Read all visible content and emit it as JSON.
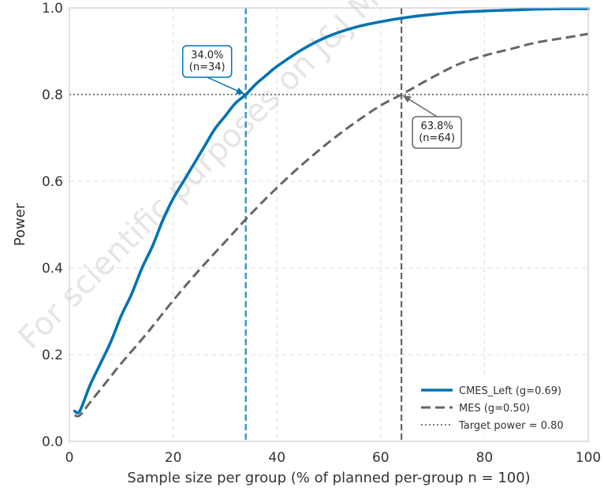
{
  "chart_data": {
    "type": "line",
    "xlabel": "Sample size per group (% of planned per-group n = 100)",
    "ylabel": "Power",
    "xlim": [
      0,
      100
    ],
    "ylim": [
      0.0,
      1.0
    ],
    "xticks": [
      0,
      20,
      40,
      60,
      80,
      100
    ],
    "yticks": [
      0.0,
      0.2,
      0.4,
      0.6,
      0.8,
      1.0
    ],
    "xtick_labels": [
      "0",
      "20",
      "40",
      "60",
      "80",
      "100"
    ],
    "ytick_labels": [
      "0.0",
      "0.2",
      "0.4",
      "0.6",
      "0.8",
      "1.0"
    ],
    "grid": true,
    "legend_position": "bottom-right",
    "series": [
      {
        "name": "CMES_Left (g=0.69)",
        "color": "#0072b2",
        "style": "solid",
        "x": [
          1,
          2,
          4,
          6,
          8,
          10,
          12,
          14,
          16,
          18,
          20,
          22,
          24,
          26,
          28,
          30,
          32,
          34,
          36,
          38,
          40,
          45,
          50,
          55,
          60,
          65,
          70,
          75,
          80,
          85,
          90,
          95,
          100
        ],
        "y": [
          0.07,
          0.07,
          0.13,
          0.18,
          0.23,
          0.29,
          0.34,
          0.4,
          0.45,
          0.51,
          0.56,
          0.6,
          0.64,
          0.68,
          0.72,
          0.75,
          0.78,
          0.8,
          0.825,
          0.845,
          0.865,
          0.905,
          0.935,
          0.955,
          0.968,
          0.978,
          0.985,
          0.99,
          0.993,
          0.995,
          0.997,
          0.998,
          0.998
        ]
      },
      {
        "name": "MES (g=0.50)",
        "color": "#666666",
        "style": "dashed",
        "x": [
          1,
          2,
          4,
          6,
          8,
          10,
          15,
          20,
          25,
          30,
          35,
          40,
          45,
          50,
          55,
          60,
          64,
          70,
          75,
          80,
          85,
          90,
          95,
          100
        ],
        "y": [
          0.06,
          0.06,
          0.09,
          0.12,
          0.15,
          0.18,
          0.25,
          0.325,
          0.395,
          0.46,
          0.525,
          0.585,
          0.64,
          0.69,
          0.735,
          0.775,
          0.8,
          0.84,
          0.87,
          0.89,
          0.905,
          0.92,
          0.93,
          0.94
        ]
      }
    ],
    "target_power": {
      "name": "Target power = 0.80",
      "value": 0.8,
      "color": "#333333",
      "style": "dotted"
    },
    "vertical_lines": [
      {
        "x": 34,
        "color": "#2b8cc4",
        "style": "dashed"
      },
      {
        "x": 64,
        "color": "#666666",
        "style": "dashed"
      }
    ],
    "annotations": [
      {
        "lines": [
          "34.0%",
          "(n=34)"
        ],
        "point": [
          34,
          0.8
        ],
        "border": "#0072b2",
        "position": "upper-left"
      },
      {
        "lines": [
          "63.8%",
          "(n=64)"
        ],
        "point": [
          64,
          0.8
        ],
        "border": "#666666",
        "position": "lower-right"
      }
    ]
  },
  "watermark": "For scientific purposes on J&J Me"
}
